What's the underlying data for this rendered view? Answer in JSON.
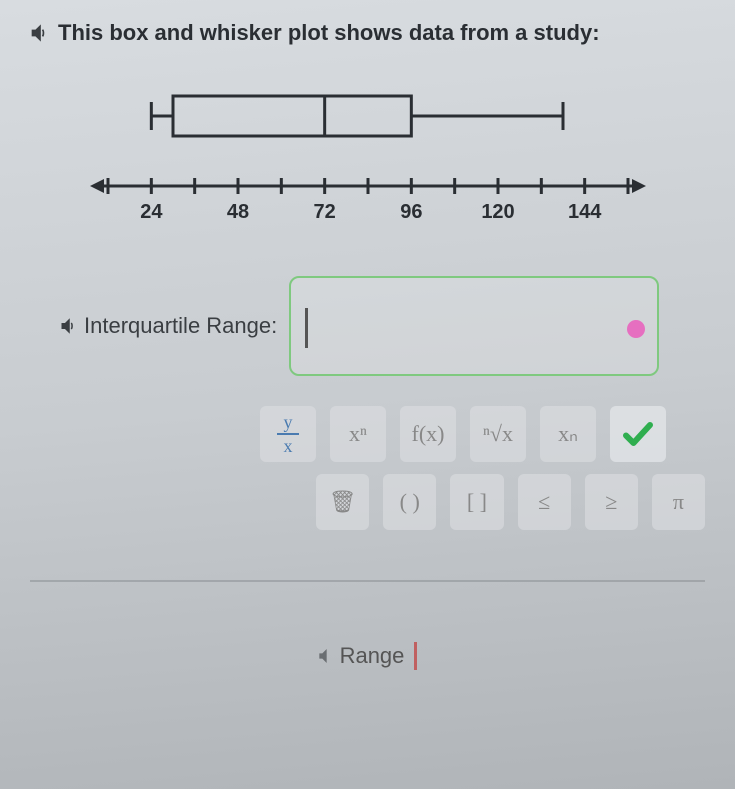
{
  "title": "This box and whisker plot shows data from a study:",
  "boxplot": {
    "type": "boxplot",
    "axis_min": 12,
    "axis_max": 156,
    "tick_step": 12,
    "labeled_ticks": [
      24,
      48,
      72,
      96,
      120,
      144
    ],
    "min": 24,
    "q1": 30,
    "median": 72,
    "q3": 96,
    "max": 138,
    "box_stroke": "#2a2e33",
    "box_fill": "none",
    "axis_color": "#2a2e33",
    "label_fontsize": 20,
    "stroke_width": 3
  },
  "iqr": {
    "label": "Interquartile Range:",
    "value": ""
  },
  "toolbar": {
    "row1": {
      "frac_num": "y",
      "frac_den": "x",
      "exp": "xⁿ",
      "fx": "f(x)",
      "root": "ⁿ√x",
      "xsub": "xₙ"
    },
    "row2": {
      "trash": "🗑",
      "paren": "( )",
      "bracket": "[ ]",
      "le": "≤",
      "ge": "≥",
      "pi": "π"
    }
  },
  "range": {
    "label": "Range"
  },
  "colors": {
    "accent_green": "#7fc97f",
    "check_green": "#2fae4f",
    "pink": "#e66fc0",
    "text_dark": "#2a2e33"
  }
}
